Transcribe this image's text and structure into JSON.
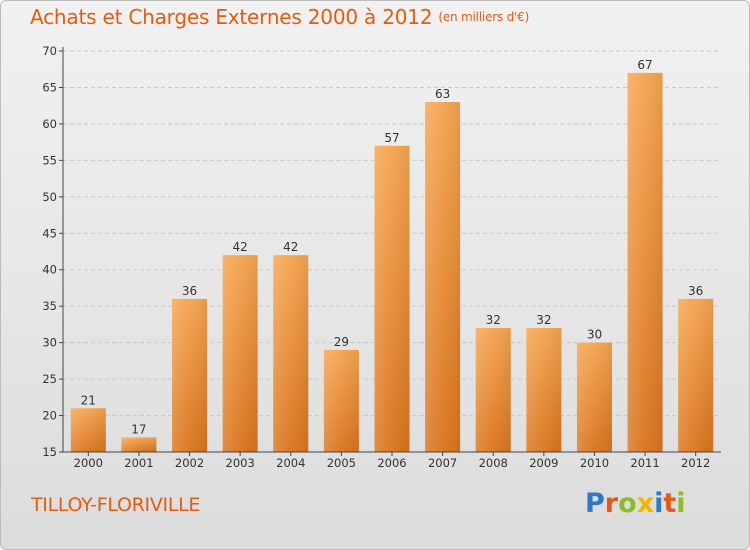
{
  "header": {
    "title": "Achats et Charges Externes 2000 à 2012",
    "unit": "(en milliers d'€)"
  },
  "footer": {
    "commune": "TILLOY-FLORIVILLE",
    "brand_letters": [
      {
        "ch": "P",
        "color": "#2e78c7"
      },
      {
        "ch": "r",
        "color": "#e25b1e"
      },
      {
        "ch": "o",
        "color": "#8cbd29"
      },
      {
        "ch": "x",
        "color": "#f2b500"
      },
      {
        "ch": "i",
        "color": "#2e78c7"
      },
      {
        "ch": "t",
        "color": "#e25b1e"
      },
      {
        "ch": "i",
        "color": "#8cbd29"
      }
    ]
  },
  "colors": {
    "accent": "#e05d12",
    "bar_top": "#f5a450",
    "bar_bottom": "#d9741d",
    "grid": "#c8c8c8"
  },
  "chart_data": {
    "type": "bar",
    "title": "Achats et Charges Externes 2000 à 2012",
    "subtitle": "(en milliers d'€)",
    "categories": [
      "2000",
      "2001",
      "2002",
      "2003",
      "2004",
      "2005",
      "2006",
      "2007",
      "2008",
      "2009",
      "2010",
      "2011",
      "2012"
    ],
    "values": [
      21,
      17,
      36,
      42,
      42,
      29,
      57,
      63,
      32,
      32,
      30,
      67,
      36
    ],
    "ylim": [
      15,
      70
    ],
    "yticks": [
      15,
      20,
      25,
      30,
      35,
      40,
      45,
      50,
      55,
      60,
      65,
      70
    ],
    "grid": true,
    "data_labels": true,
    "xlabel": "",
    "ylabel": ""
  }
}
